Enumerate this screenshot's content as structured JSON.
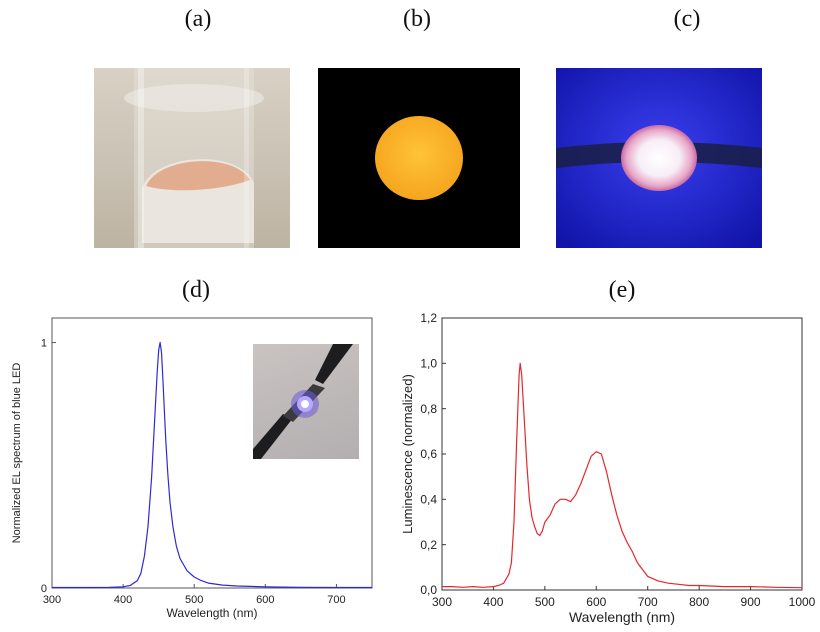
{
  "panels": {
    "a": "(a)",
    "b": "(b)",
    "c": "(c)",
    "d": "(d)",
    "e": "(e)"
  },
  "chart_data": [
    {
      "type": "line",
      "panel": "(d)",
      "title": "",
      "xlabel": "Wavelength (nm)",
      "ylabel": "Normalized EL spectrum of blue LED",
      "xlim": [
        300,
        750
      ],
      "ylim": [
        0,
        1.1
      ],
      "x_ticks": [
        "300",
        "400",
        "500",
        "600",
        "700"
      ],
      "y_ticks": [
        "0",
        "1"
      ],
      "color": "#2b2bd6",
      "series": [
        {
          "x": [
            300,
            350,
            380,
            400,
            410,
            420,
            425,
            430,
            435,
            440,
            445,
            448,
            450,
            452,
            454,
            456,
            458,
            460,
            463,
            466,
            470,
            475,
            480,
            490,
            500,
            510,
            520,
            540,
            560,
            600,
            650,
            700,
            750
          ],
          "y": [
            0.002,
            0.002,
            0.003,
            0.005,
            0.01,
            0.03,
            0.06,
            0.13,
            0.25,
            0.45,
            0.72,
            0.88,
            0.97,
            1.0,
            0.96,
            0.85,
            0.72,
            0.6,
            0.46,
            0.35,
            0.25,
            0.17,
            0.12,
            0.07,
            0.045,
            0.03,
            0.02,
            0.012,
            0.008,
            0.005,
            0.003,
            0.002,
            0.002
          ]
        }
      ]
    },
    {
      "type": "line",
      "panel": "(e)",
      "title": "",
      "xlabel": "Wavelength (nm)",
      "ylabel": "Luminescence (normalized)",
      "xlim": [
        300,
        1000
      ],
      "ylim": [
        0,
        1.2
      ],
      "x_ticks": [
        "300",
        "400",
        "500",
        "600",
        "700",
        "800",
        "900",
        "1000"
      ],
      "y_ticks": [
        "0,0",
        "0,2",
        "0,4",
        "0,6",
        "0,8",
        "1,0",
        "1,2"
      ],
      "color": "#e8262a",
      "series": [
        {
          "x": [
            300,
            320,
            340,
            360,
            380,
            400,
            410,
            420,
            430,
            435,
            440,
            445,
            450,
            452,
            455,
            460,
            465,
            470,
            475,
            480,
            485,
            490,
            495,
            500,
            510,
            520,
            530,
            540,
            550,
            560,
            570,
            580,
            590,
            600,
            610,
            620,
            630,
            640,
            650,
            660,
            670,
            680,
            690,
            700,
            720,
            740,
            760,
            780,
            800,
            850,
            900,
            950,
            1000
          ],
          "y": [
            0.015,
            0.015,
            0.012,
            0.015,
            0.012,
            0.015,
            0.02,
            0.03,
            0.07,
            0.12,
            0.3,
            0.65,
            0.95,
            1.0,
            0.95,
            0.75,
            0.55,
            0.4,
            0.32,
            0.28,
            0.25,
            0.24,
            0.26,
            0.3,
            0.33,
            0.38,
            0.4,
            0.4,
            0.39,
            0.42,
            0.47,
            0.53,
            0.59,
            0.61,
            0.6,
            0.52,
            0.42,
            0.33,
            0.26,
            0.21,
            0.17,
            0.12,
            0.09,
            0.06,
            0.04,
            0.03,
            0.025,
            0.02,
            0.02,
            0.015,
            0.015,
            0.012,
            0.01
          ]
        }
      ]
    }
  ]
}
